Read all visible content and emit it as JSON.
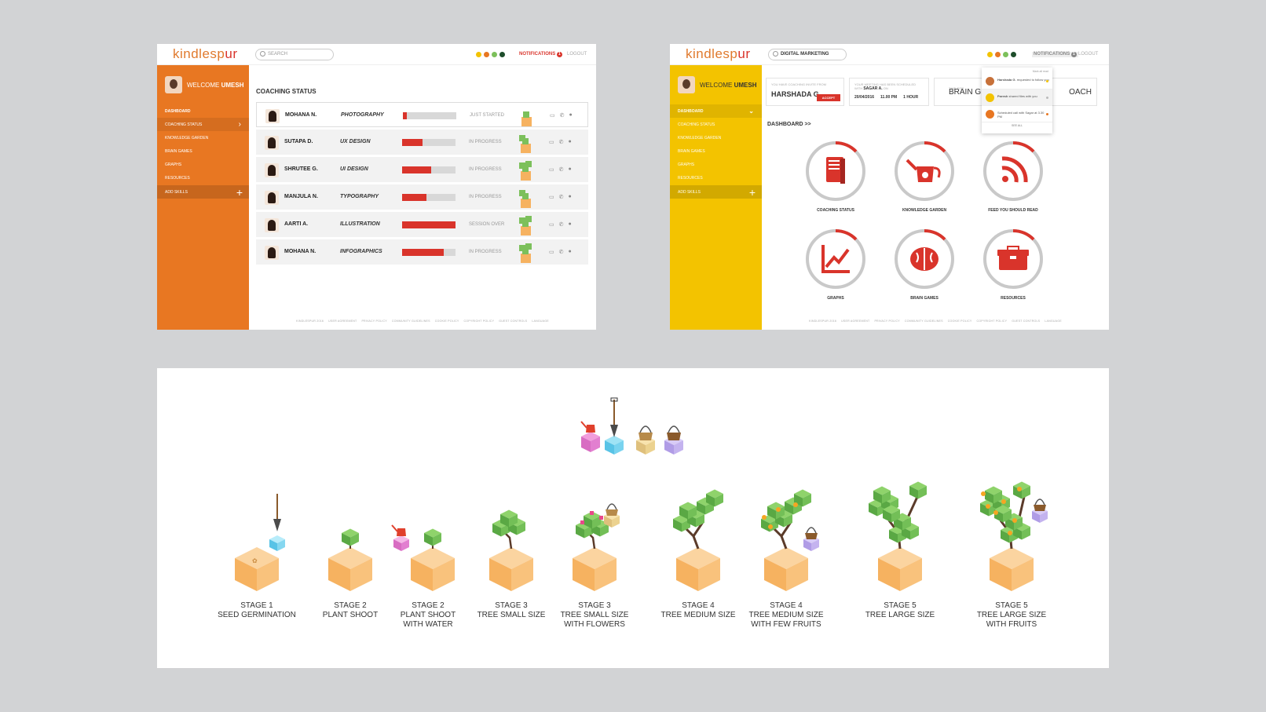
{
  "brand": {
    "logo_main": "kindlesp",
    "logo_accent": "ur",
    "colors": {
      "orange": "#e87722",
      "yellow": "#f3c300",
      "red": "#d9342b",
      "green": "#7cc05b",
      "dark_green": "#1e4d2b"
    }
  },
  "screen1": {
    "search_placeholder": "SEARCH",
    "notifications_label": "NOTIFICATIONS",
    "notifications_count": "1",
    "logout_label": "LOGOUT",
    "welcome_prefix": "WELCOME",
    "welcome_name": "UMESH",
    "menu": [
      "DASHBOARD",
      "COACHING STATUS",
      "KNOWLEDGE GARDEN",
      "BRAIN GAMES",
      "GRAPHS",
      "RESOURCES"
    ],
    "add_skills": "ADD SKILLS",
    "title": "COACHING STATUS",
    "rows": [
      {
        "name": "MOHANA N.",
        "skill": "PHOTOGRAPHY",
        "progress": 0.08,
        "status": "JUST STARTED"
      },
      {
        "name": "SUTAPA D.",
        "skill": "UX DESIGN",
        "progress": 0.38,
        "status": "IN PROGRESS"
      },
      {
        "name": "SHRUTEE G.",
        "skill": "UI DESIGN",
        "progress": 0.55,
        "status": "IN PROGRESS"
      },
      {
        "name": "MANJULA N.",
        "skill": "TYPOGRAPHY",
        "progress": 0.45,
        "status": "IN PROGRESS"
      },
      {
        "name": "AARTI A.",
        "skill": "ILLUSTRATION",
        "progress": 1.0,
        "status": "SESSION OVER"
      },
      {
        "name": "MOHANA N.",
        "skill": "INFOGRAPHICS",
        "progress": 0.78,
        "status": "IN PROGRESS"
      }
    ],
    "footer": [
      "KINDLESPUR 2016",
      "USER AGREEMENT",
      "PRIVACY POLICY",
      "COMMUNITY GUIDELINES",
      "COOKIE POLICY",
      "COPYRIGHT POLICY",
      "GUEST CONTROLS",
      "LANGUAGE"
    ]
  },
  "screen2": {
    "search_value": "DIGITAL MARKETING",
    "notifications_label": "NOTIFICATIONS",
    "notifications_count": "1",
    "logout_label": "LOGOUT",
    "welcome_prefix": "WELCOME",
    "welcome_name": "UMESH",
    "menu": [
      "DASHBOARD",
      "COACHING STATUS",
      "KNOWLEDGE GARDEN",
      "BRAIN GAMES",
      "GRAPHS",
      "RESOURCES"
    ],
    "add_skills": "ADD SKILLS",
    "invite_label": "YOU HAVE COACHING INVITE FROM",
    "invite_name": "HARSHADA G.",
    "accept_label": "ACCEPT",
    "meeting_label": "YOUR MEETING HAS BEEN SCHEDULED WITH",
    "meeting_with": "SAGAR A.",
    "meeting_on": "ON",
    "meeting_date": "20/04/2016",
    "meeting_time": "11.00 PM",
    "meeting_duration": "1 HOUR",
    "time_for": "TIME FOR",
    "brain_partial": "BRAIN G",
    "coach_partial": "OACH",
    "dashboard_label": "DASHBOARD  >>",
    "tiles": [
      {
        "label": "COACHING STATUS",
        "icon": "book-icon"
      },
      {
        "label": "KNOWLEDGE GARDEN",
        "icon": "watering-can-icon"
      },
      {
        "label": "FEED YOU SHOULD READ",
        "icon": "rss-icon"
      },
      {
        "label": "GRAPHS",
        "icon": "chart-icon"
      },
      {
        "label": "BRAIN GAMES",
        "icon": "brain-icon"
      },
      {
        "label": "RESOURCES",
        "icon": "toolbox-icon"
      }
    ],
    "popup": {
      "header": "Mark all read",
      "items": [
        {
          "who": "Harshada G.",
          "text": "requested to follow you",
          "icon_color": "#c7713a"
        },
        {
          "who": "Paresh",
          "text": "shared files with you",
          "icon_color": "#f3c300"
        },
        {
          "who": "",
          "text": "Scheduled call with Sagar at 3.30 PM",
          "icon_color": "#e87722"
        }
      ],
      "see_all": "SEE ALL"
    },
    "footer": [
      "KINDLESPUR 2016",
      "USER AGREEMENT",
      "PRIVACY POLICY",
      "COMMUNITY GUIDELINES",
      "COOKIE POLICY",
      "COPYRIGHT POLICY",
      "GUEST CONTROLS",
      "LANGUAGE"
    ]
  },
  "stages": [
    {
      "l1": "STAGE 1",
      "l2": "SEED GERMINATION",
      "l3": ""
    },
    {
      "l1": "STAGE 2",
      "l2": "PLANT SHOOT",
      "l3": ""
    },
    {
      "l1": "STAGE 2",
      "l2": "PLANT SHOOT",
      "l3": "WITH WATER"
    },
    {
      "l1": "STAGE 3",
      "l2": "TREE SMALL SIZE",
      "l3": ""
    },
    {
      "l1": "STAGE 3",
      "l2": "TREE SMALL SIZE",
      "l3": "WITH FLOWERS"
    },
    {
      "l1": "STAGE 4",
      "l2": "TREE MEDIUM SIZE",
      "l3": ""
    },
    {
      "l1": "STAGE 4",
      "l2": "TREE MEDIUM SIZE",
      "l3": "WITH FEW FRUITS"
    },
    {
      "l1": "STAGE 5",
      "l2": "TREE LARGE SIZE",
      "l3": ""
    },
    {
      "l1": "STAGE 5",
      "l2": "TREE LARGE SIZE",
      "l3": "WITH FRUITS"
    }
  ]
}
